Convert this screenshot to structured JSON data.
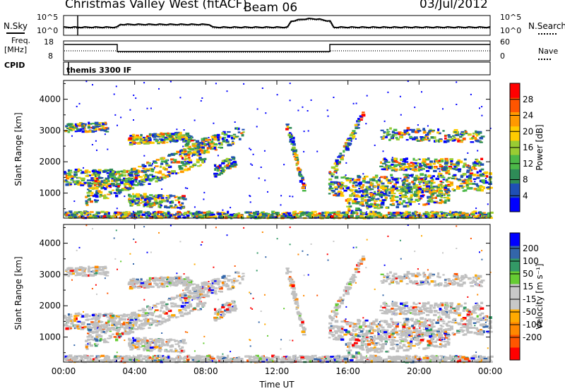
{
  "header": {
    "station": "Christmas Valley West (fitACF)",
    "beam": "Beam 06",
    "date": "03/Jul/2012"
  },
  "top_panels": {
    "nsky_label": "N.Sky",
    "nsearch_label": "N.Search",
    "nsky_ticks": [
      "10^5",
      "10^0"
    ],
    "nsearch_ticks": [
      "10^5",
      "10^0"
    ],
    "freq_label": "Freq.",
    "freq_unit": "[MHz]",
    "freq_ticks": [
      "18",
      "8"
    ],
    "nave_label": "Nave",
    "nave_ticks": [
      "60",
      "0"
    ],
    "cpid_label": "CPID",
    "cpid_text": "themis 3300 IF"
  },
  "colors": {
    "power_scale": [
      "#0000ff",
      "#1f4fb5",
      "#2e8b57",
      "#4cb848",
      "#99cc33",
      "#ffcc00",
      "#ff9900",
      "#ff5500",
      "#ff0000"
    ],
    "velocity_scale": [
      "#ff0000",
      "#ff5500",
      "#ff8800",
      "#ffaa00",
      "#c8c8c8",
      "#c8c8c8",
      "#66cc33",
      "#339966",
      "#3366aa",
      "#0000ff"
    ],
    "ground_scatter": "#c0c0c0"
  },
  "chart_data": [
    {
      "type": "heatmap",
      "title": "Power",
      "xlabel": "Time UT",
      "ylabel": "Slant Range [km]",
      "x_ticks": [
        "00:00",
        "04:00",
        "08:00",
        "12:00",
        "16:00",
        "20:00",
        "00:00"
      ],
      "y_ticks": [
        1000,
        2000,
        3000,
        4000
      ],
      "ylim": [
        200,
        4600
      ],
      "colorbar_label": "Power [dB]",
      "colorbar_ticks": [
        4,
        8,
        12,
        16,
        20,
        24,
        28
      ],
      "colorbar_range": [
        0,
        32
      ]
    },
    {
      "type": "heatmap",
      "title": "Velocity",
      "xlabel": "Time UT",
      "ylabel": "Slant Range [km]",
      "x_ticks": [
        "00:00",
        "04:00",
        "08:00",
        "12:00",
        "16:00",
        "20:00",
        "00:00"
      ],
      "y_ticks": [
        1000,
        2000,
        3000,
        4000
      ],
      "ylim": [
        200,
        4600
      ],
      "colorbar_label": "Velocity [m s⁻¹]",
      "colorbar_ticks": [
        200,
        100,
        50,
        15,
        -15,
        -50,
        -100,
        -200
      ]
    }
  ]
}
